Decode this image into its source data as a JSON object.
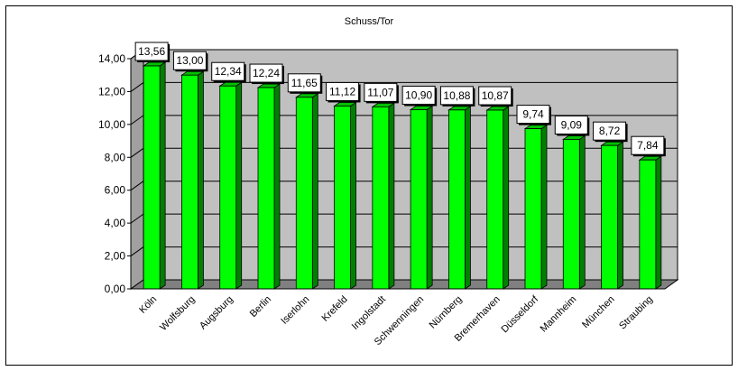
{
  "chart_data": {
    "type": "bar",
    "title": "Schuss/Tor",
    "categories": [
      "Köln",
      "Wolfsburg",
      "Augsburg",
      "Berlin",
      "Iserlohn",
      "Krefeld",
      "Ingolstadt",
      "Schwenningen",
      "Nürnberg",
      "Bremerhaven",
      "Düsseldorf",
      "Mannheim",
      "München",
      "Straubing"
    ],
    "values": [
      13.56,
      13.0,
      12.34,
      12.24,
      11.65,
      11.12,
      11.07,
      10.9,
      10.88,
      10.87,
      9.74,
      9.09,
      8.72,
      7.84
    ],
    "data_labels": [
      "13,56",
      "13,00",
      "12,34",
      "12,24",
      "11,65",
      "11,12",
      "11,07",
      "10,90",
      "10,88",
      "10,87",
      "9,74",
      "9,09",
      "8,72",
      "7,84"
    ],
    "ytick_labels": [
      "0,00",
      "2,00",
      "4,00",
      "6,00",
      "8,00",
      "10,00",
      "12,00",
      "14,00"
    ],
    "yticks": [
      0,
      2,
      4,
      6,
      8,
      10,
      12,
      14
    ],
    "ylim": [
      0,
      14
    ],
    "xlabel": "",
    "ylabel": "",
    "grid": true,
    "legend": "none",
    "bar_color": "#00ff00",
    "bar_shade_color": "#008000",
    "plot_back_color": "#c0c0c0",
    "floor_color": "#808080"
  }
}
